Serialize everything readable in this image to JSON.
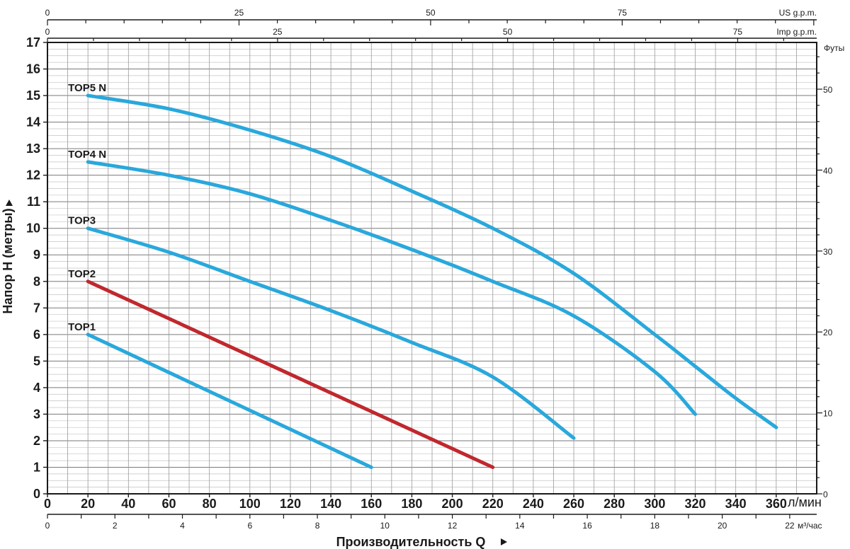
{
  "chart_data": {
    "type": "line",
    "title": "",
    "xlabel": "Производительность Q",
    "ylabel": "Напор H (метры)",
    "x_unit": "л/мин",
    "x2_unit": "м³/час",
    "us_unit": "US g.p.m.",
    "imp_unit": "Imp g.p.m.",
    "feet_unit": "Футы",
    "xlim": [
      0,
      380
    ],
    "ylim": [
      0,
      17
    ],
    "grid": true,
    "x_ticks": [
      0,
      20,
      40,
      60,
      80,
      100,
      120,
      140,
      160,
      180,
      200,
      220,
      240,
      260,
      280,
      300,
      320,
      340,
      360
    ],
    "y_ticks": [
      0,
      1,
      2,
      3,
      4,
      5,
      6,
      7,
      8,
      9,
      10,
      11,
      12,
      13,
      14,
      15,
      16,
      17
    ],
    "m3h_ticks": [
      0,
      2,
      4,
      6,
      8,
      10,
      12,
      14,
      16,
      18,
      20,
      22
    ],
    "us_gpm_ticks": [
      0,
      25,
      50,
      75
    ],
    "imp_gpm_ticks": [
      0,
      25,
      50,
      75
    ],
    "feet_ticks": [
      0,
      10,
      20,
      30,
      40,
      50
    ],
    "series": [
      {
        "name": "TOP1",
        "color": "#29a8dc",
        "x": [
          20,
          160
        ],
        "y": [
          6,
          1
        ]
      },
      {
        "name": "TOP2",
        "color": "#c0282d",
        "x": [
          20,
          220
        ],
        "y": [
          8,
          1
        ]
      },
      {
        "name": "TOP3",
        "color": "#29a8dc",
        "x": [
          20,
          60,
          100,
          140,
          180,
          220,
          260
        ],
        "y": [
          10,
          9.1,
          8.0,
          6.9,
          5.7,
          4.4,
          2.1
        ]
      },
      {
        "name": "TOP4 N",
        "color": "#29a8dc",
        "x": [
          20,
          60,
          100,
          140,
          180,
          220,
          260,
          300,
          320
        ],
        "y": [
          12.5,
          12.0,
          11.3,
          10.3,
          9.2,
          8.0,
          6.7,
          4.6,
          3.0
        ]
      },
      {
        "name": "TOP5 N",
        "color": "#29a8dc",
        "x": [
          20,
          60,
          100,
          140,
          180,
          220,
          260,
          300,
          320,
          340,
          360
        ],
        "y": [
          15,
          14.5,
          13.7,
          12.7,
          11.4,
          10.0,
          8.3,
          6.0,
          4.8,
          3.6,
          2.5
        ]
      }
    ]
  }
}
